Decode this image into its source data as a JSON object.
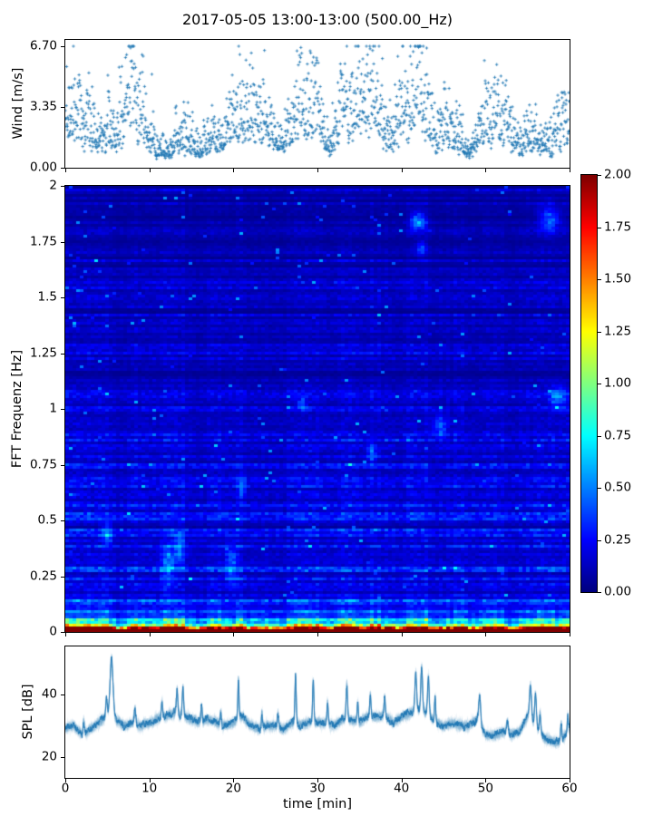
{
  "figure": {
    "title": "2017-05-05 13:00-13:00 (500.00_Hz)",
    "xlabel": "time [min]",
    "background": "#ffffff",
    "text_color": "#000000",
    "series_color": "#1f77b4"
  },
  "xticks": {
    "labels": [
      "0",
      "10",
      "20",
      "30",
      "40",
      "50",
      "60"
    ],
    "values": [
      0,
      10,
      20,
      30,
      40,
      50,
      60
    ]
  },
  "chart_data": [
    {
      "id": "wind",
      "type": "scatter",
      "marker": "+",
      "color": "#1f77b4",
      "ylabel": "Wind [m/s]",
      "xlabel_shared": "time [min]",
      "xlim": [
        0,
        60
      ],
      "ylim": [
        0,
        7.05
      ],
      "yticks": {
        "labels": [
          "0.00",
          "3.35",
          "6.70"
        ],
        "values": [
          0,
          3.35,
          6.7
        ]
      },
      "samples_per_minute": 30,
      "mean_wind_per_minute": [
        3.2,
        2.2,
        2.8,
        2.4,
        2.6,
        3.0,
        2.2,
        2.0,
        3.4,
        3.2,
        1.5,
        1.3,
        1.4,
        1.9,
        2.6,
        2.0,
        1.6,
        1.9,
        1.7,
        1.9,
        2.4,
        2.8,
        2.0,
        1.6,
        1.7,
        1.5,
        1.7,
        3.0,
        3.4,
        2.6,
        3.2,
        2.4,
        2.3,
        3.6,
        3.8,
        3.0,
        3.4,
        3.6,
        3.2,
        2.6,
        2.8,
        3.4,
        3.6,
        2.8,
        2.4,
        2.6,
        2.2,
        2.4,
        1.8,
        2.1,
        3.0,
        3.2,
        2.4,
        1.8,
        2.0,
        3.4,
        3.0,
        2.6,
        2.0,
        2.2,
        2.4
      ],
      "max_observed": 6.7,
      "seed": 42
    },
    {
      "id": "spectrogram",
      "type": "heatmap",
      "colormap": "jet",
      "ylabel": "FFT Frequenz [Hz]",
      "xlim": [
        0,
        60
      ],
      "ylim": [
        0,
        2
      ],
      "vmin": 0,
      "vmax": 2,
      "yticks": {
        "labels": [
          "0",
          "0.25",
          "0.5",
          "0.75",
          "1",
          "1.25",
          "1.5",
          "1.75",
          "2"
        ],
        "values": [
          0,
          0.25,
          0.5,
          0.75,
          1,
          1.25,
          1.5,
          1.75,
          2
        ]
      },
      "column_intensity_per_minute": [
        1.3,
        1.2,
        1.35,
        1.3,
        1.4,
        1.35,
        0.7,
        0.75,
        1.25,
        1.2,
        0.9,
        1.15,
        1.25,
        1.35,
        1.3,
        0.8,
        0.75,
        1.0,
        1.15,
        1.1,
        1.25,
        1.2,
        0.85,
        0.9,
        0.8,
        0.75,
        0.8,
        1.35,
        1.3,
        1.15,
        1.25,
        0.85,
        0.9,
        1.35,
        1.3,
        1.0,
        1.2,
        1.3,
        1.1,
        0.85,
        0.95,
        1.35,
        1.5,
        1.3,
        0.9,
        0.95,
        1.15,
        1.2,
        0.85,
        0.9,
        1.1,
        1.15,
        1.2,
        0.8,
        0.85,
        1.3,
        1.25,
        1.1,
        1.2,
        1.35,
        1.4
      ],
      "highlights": [
        {
          "t": 42.0,
          "f": 1.84,
          "dt": 0.9,
          "df": 0.035,
          "v": 0.5
        },
        {
          "t": 42.4,
          "f": 1.72,
          "dt": 0.6,
          "df": 0.03,
          "v": 0.3
        },
        {
          "t": 28.2,
          "f": 1.02,
          "dt": 0.5,
          "df": 0.03,
          "v": 0.3
        },
        {
          "t": 44.6,
          "f": 0.92,
          "dt": 0.8,
          "df": 0.05,
          "v": 0.32
        },
        {
          "t": 57.6,
          "f": 1.85,
          "dt": 1.2,
          "df": 0.06,
          "v": 0.33
        },
        {
          "t": 58.6,
          "f": 1.05,
          "dt": 1.0,
          "df": 0.05,
          "v": 0.3
        },
        {
          "t": 36.5,
          "f": 0.8,
          "dt": 0.5,
          "df": 0.04,
          "v": 0.3
        },
        {
          "t": 21.0,
          "f": 0.65,
          "dt": 0.5,
          "df": 0.05,
          "v": 0.28
        },
        {
          "t": 13.6,
          "f": 0.38,
          "dt": 0.6,
          "df": 0.07,
          "v": 0.33
        },
        {
          "t": 5.0,
          "f": 0.44,
          "dt": 0.6,
          "df": 0.05,
          "v": 0.3
        },
        {
          "t": 12.2,
          "f": 0.3,
          "dt": 0.8,
          "df": 0.09,
          "v": 0.3
        },
        {
          "t": 19.8,
          "f": 0.3,
          "dt": 0.7,
          "df": 0.08,
          "v": 0.3
        }
      ],
      "seed": 7
    },
    {
      "id": "spl",
      "type": "line",
      "color": "#1f77b4",
      "ylabel": "SPL [dB]",
      "xlim": [
        0,
        60
      ],
      "ylim": [
        13.3,
        55.4
      ],
      "yticks": {
        "labels": [
          "20",
          "40"
        ],
        "values": [
          20,
          40
        ]
      },
      "baseline_per_minute": [
        29,
        30,
        27,
        29,
        31,
        33,
        32,
        30,
        31,
        30,
        31,
        32,
        33,
        34,
        33,
        32,
        31,
        32,
        31,
        30,
        31,
        33,
        30,
        29,
        30,
        30,
        29,
        31,
        30,
        31,
        31,
        31,
        30,
        32,
        32,
        31,
        33,
        33,
        33,
        31,
        33,
        34,
        35,
        34,
        31,
        30,
        31,
        30,
        30,
        32,
        27,
        27,
        28,
        27,
        28,
        33,
        30,
        26,
        25,
        25,
        29
      ],
      "peaks_t_height_width": [
        [
          5.5,
          19,
          0.18
        ],
        [
          4.9,
          6,
          0.1
        ],
        [
          2.2,
          4,
          0.08
        ],
        [
          8.3,
          5,
          0.09
        ],
        [
          11.5,
          5,
          0.08
        ],
        [
          13.3,
          8,
          0.09
        ],
        [
          14.0,
          9,
          0.09
        ],
        [
          16.2,
          5,
          0.08
        ],
        [
          18.5,
          4,
          0.07
        ],
        [
          20.6,
          13,
          0.07
        ],
        [
          23.4,
          5,
          0.07
        ],
        [
          25.3,
          4,
          0.07
        ],
        [
          27.4,
          15,
          0.08
        ],
        [
          29.5,
          13,
          0.08
        ],
        [
          31.2,
          7,
          0.07
        ],
        [
          33.5,
          11,
          0.09
        ],
        [
          34.8,
          6,
          0.07
        ],
        [
          36.3,
          7,
          0.08
        ],
        [
          38.0,
          6,
          0.08
        ],
        [
          41.7,
          12,
          0.1
        ],
        [
          42.4,
          14,
          0.1
        ],
        [
          43.2,
          12,
          0.09
        ],
        [
          44.0,
          8,
          0.07
        ],
        [
          49.3,
          9,
          0.12
        ],
        [
          52.6,
          4,
          0.1
        ],
        [
          55.35,
          11,
          0.12
        ],
        [
          55.95,
          10,
          0.1
        ],
        [
          56.5,
          6,
          0.08
        ],
        [
          59.0,
          6,
          0.08
        ],
        [
          59.8,
          5,
          0.07
        ]
      ],
      "fuzz_passes": 9,
      "seed": 11
    }
  ],
  "colorbar": {
    "colormap": "jet",
    "vmin": 0,
    "vmax": 2,
    "ticks": {
      "labels": [
        "0.00",
        "0.25",
        "0.50",
        "0.75",
        "1.00",
        "1.25",
        "1.50",
        "1.75",
        "2.00"
      ],
      "values": [
        0,
        0.25,
        0.5,
        0.75,
        1,
        1.25,
        1.5,
        1.75,
        2
      ]
    }
  }
}
